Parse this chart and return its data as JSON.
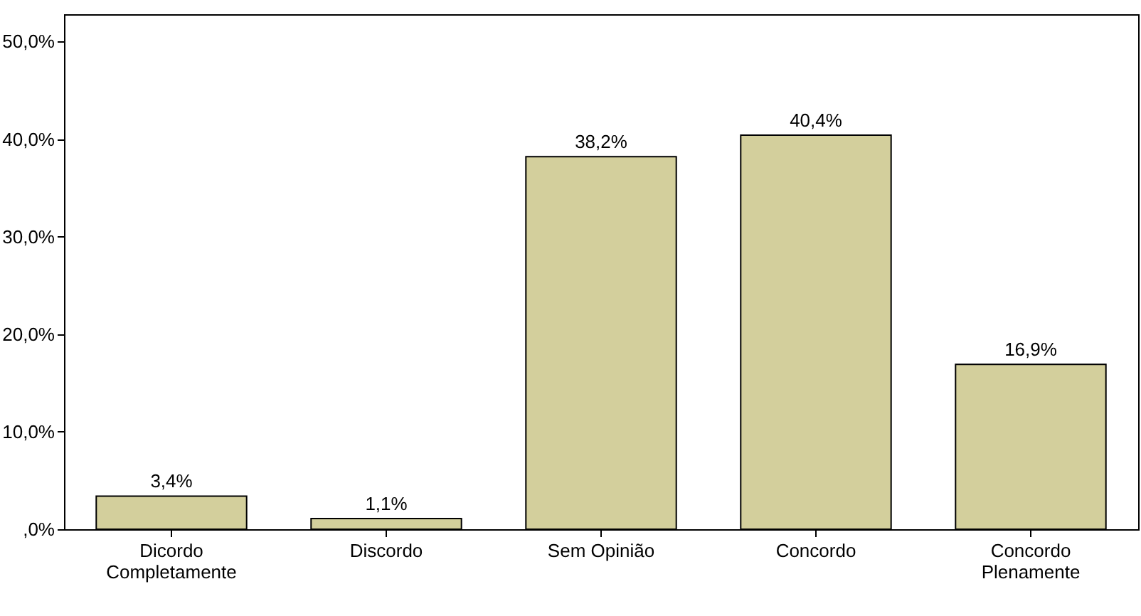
{
  "chart_data": {
    "type": "bar",
    "categories": [
      "Dicordo\nCompletamente",
      "Discordo",
      "Sem Opinião",
      "Concordo",
      "Concordo\nPlenamente"
    ],
    "values": [
      3.4,
      1.1,
      38.2,
      40.4,
      16.9
    ],
    "value_labels": [
      "3,4%",
      "1,1%",
      "38,2%",
      "40,4%",
      "16,9%"
    ],
    "color": "#d3cf9c",
    "ylim": [
      0,
      52.8
    ],
    "yticks": [
      {
        "value": 0,
        "label": ",0%"
      },
      {
        "value": 10,
        "label": "10,0%"
      },
      {
        "value": 20,
        "label": "20,0%"
      },
      {
        "value": 30,
        "label": "30,0%"
      },
      {
        "value": 40,
        "label": "40,0%"
      },
      {
        "value": 50,
        "label": "50,0%"
      }
    ],
    "grid": false
  }
}
